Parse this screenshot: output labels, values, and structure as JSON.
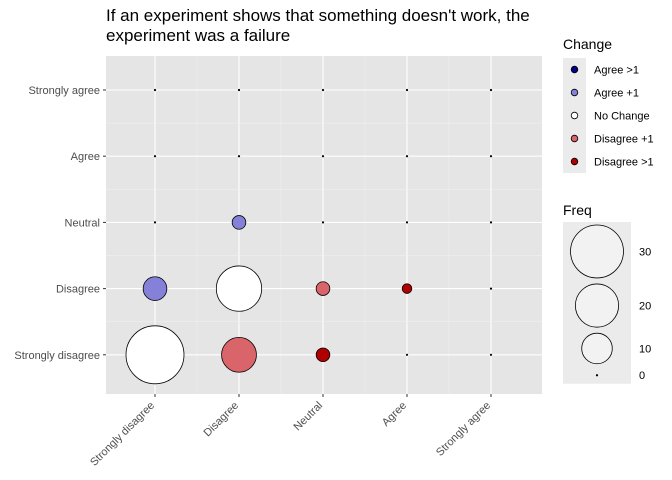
{
  "chart_data": {
    "type": "scatter",
    "title_lines": [
      "If an experiment shows that something doesn't work, the",
      "experiment was a failure"
    ],
    "categories_x": [
      "Strongly disagree",
      "Disagree",
      "Neutral",
      "Agree",
      "Strongly agree"
    ],
    "categories_y": [
      "Strongly agree",
      "Agree",
      "Neutral",
      "Disagree",
      "Strongly disagree"
    ],
    "change_legend": {
      "title": "Change",
      "items": [
        {
          "label": "Agree >1",
          "color": "#00008b"
        },
        {
          "label": "Agree +1",
          "color": "#8581d9"
        },
        {
          "label": "No Change",
          "color": "#ffffff"
        },
        {
          "label": "Disagree +1",
          "color": "#d9646a"
        },
        {
          "label": "Disagree >1",
          "color": "#b00000"
        }
      ]
    },
    "freq_legend": {
      "title": "Freq",
      "items": [
        {
          "label": "30",
          "value": 30
        },
        {
          "label": "20",
          "value": 20
        },
        {
          "label": "10",
          "value": 10
        },
        {
          "label": "0",
          "value": 0
        }
      ]
    },
    "points": [
      {
        "x": "Strongly disagree",
        "y": "Strongly disagree",
        "freq": 36,
        "change": "No Change"
      },
      {
        "x": "Strongly disagree",
        "y": "Disagree",
        "freq": 6,
        "change": "Agree +1"
      },
      {
        "x": "Disagree",
        "y": "Disagree",
        "freq": 22,
        "change": "No Change"
      },
      {
        "x": "Disagree",
        "y": "Neutral",
        "freq": 2,
        "change": "Agree +1"
      },
      {
        "x": "Disagree",
        "y": "Strongly disagree",
        "freq": 13,
        "change": "Disagree +1"
      },
      {
        "x": "Neutral",
        "y": "Disagree",
        "freq": 2,
        "change": "Disagree +1"
      },
      {
        "x": "Neutral",
        "y": "Strongly disagree",
        "freq": 2,
        "change": "Disagree >1"
      },
      {
        "x": "Agree",
        "y": "Disagree",
        "freq": 1,
        "change": "Disagree >1"
      },
      {
        "x": "Strongly disagree",
        "y": "Strongly agree",
        "freq": 0,
        "change": "No Change"
      },
      {
        "x": "Strongly disagree",
        "y": "Agree",
        "freq": 0,
        "change": "No Change"
      },
      {
        "x": "Strongly disagree",
        "y": "Neutral",
        "freq": 0,
        "change": "No Change"
      },
      {
        "x": "Disagree",
        "y": "Strongly agree",
        "freq": 0,
        "change": "No Change"
      },
      {
        "x": "Disagree",
        "y": "Agree",
        "freq": 0,
        "change": "No Change"
      },
      {
        "x": "Neutral",
        "y": "Strongly agree",
        "freq": 0,
        "change": "No Change"
      },
      {
        "x": "Neutral",
        "y": "Agree",
        "freq": 0,
        "change": "No Change"
      },
      {
        "x": "Neutral",
        "y": "Neutral",
        "freq": 0,
        "change": "No Change"
      },
      {
        "x": "Agree",
        "y": "Strongly agree",
        "freq": 0,
        "change": "No Change"
      },
      {
        "x": "Agree",
        "y": "Agree",
        "freq": 0,
        "change": "No Change"
      },
      {
        "x": "Agree",
        "y": "Neutral",
        "freq": 0,
        "change": "No Change"
      },
      {
        "x": "Agree",
        "y": "Strongly disagree",
        "freq": 0,
        "change": "No Change"
      },
      {
        "x": "Strongly agree",
        "y": "Strongly agree",
        "freq": 0,
        "change": "No Change"
      },
      {
        "x": "Strongly agree",
        "y": "Agree",
        "freq": 0,
        "change": "No Change"
      },
      {
        "x": "Strongly agree",
        "y": "Neutral",
        "freq": 0,
        "change": "No Change"
      },
      {
        "x": "Strongly agree",
        "y": "Disagree",
        "freq": 0,
        "change": "No Change"
      },
      {
        "x": "Strongly agree",
        "y": "Strongly disagree",
        "freq": 0,
        "change": "No Change"
      }
    ],
    "panel_color": "#e5e5e5",
    "gridline_color": "#ffffff",
    "legend_key_color": "#ebebeb",
    "grid": true,
    "legend_position": "right"
  }
}
